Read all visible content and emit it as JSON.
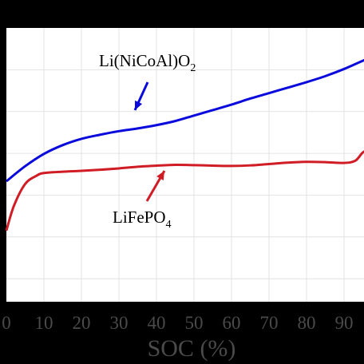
{
  "chart_data": {
    "type": "line",
    "xlabel": "SOC (%)",
    "xlim": [
      0,
      97
    ],
    "ylim": [
      0,
      1
    ],
    "xticks": [
      "0",
      "10",
      "20",
      "30",
      "40",
      "50",
      "60",
      "70",
      "80",
      "90"
    ],
    "grid": true,
    "series": [
      {
        "name": "Li(NiCoAl)O2",
        "color": "#0a0adc",
        "x": [
          0,
          5,
          10,
          15,
          20,
          25,
          30,
          35,
          40,
          45,
          50,
          55,
          60,
          65,
          70,
          75,
          80,
          85,
          90,
          95,
          97
        ],
        "y": [
          0.44,
          0.495,
          0.54,
          0.572,
          0.595,
          0.61,
          0.623,
          0.633,
          0.645,
          0.66,
          0.68,
          0.7,
          0.72,
          0.742,
          0.762,
          0.782,
          0.802,
          0.824,
          0.85,
          0.88,
          0.89
        ]
      },
      {
        "name": "LiFePO4",
        "color": "#d01c24",
        "x": [
          0,
          2,
          5,
          8,
          10,
          15,
          20,
          25,
          30,
          35,
          40,
          45,
          50,
          55,
          60,
          65,
          70,
          75,
          80,
          85,
          90,
          93,
          95,
          97
        ],
        "y": [
          0.26,
          0.35,
          0.43,
          0.46,
          0.47,
          0.475,
          0.478,
          0.482,
          0.487,
          0.493,
          0.497,
          0.5,
          0.499,
          0.497,
          0.496,
          0.498,
          0.503,
          0.508,
          0.511,
          0.51,
          0.507,
          0.515,
          0.545,
          0.56
        ]
      }
    ],
    "annotations": [
      {
        "text_main": "Li(NiCoAl)O",
        "text_sub": "2",
        "series": "Li(NiCoAl)O2"
      },
      {
        "text_main": "LiFePO",
        "text_sub": "4",
        "series": "LiFePO4"
      }
    ]
  }
}
